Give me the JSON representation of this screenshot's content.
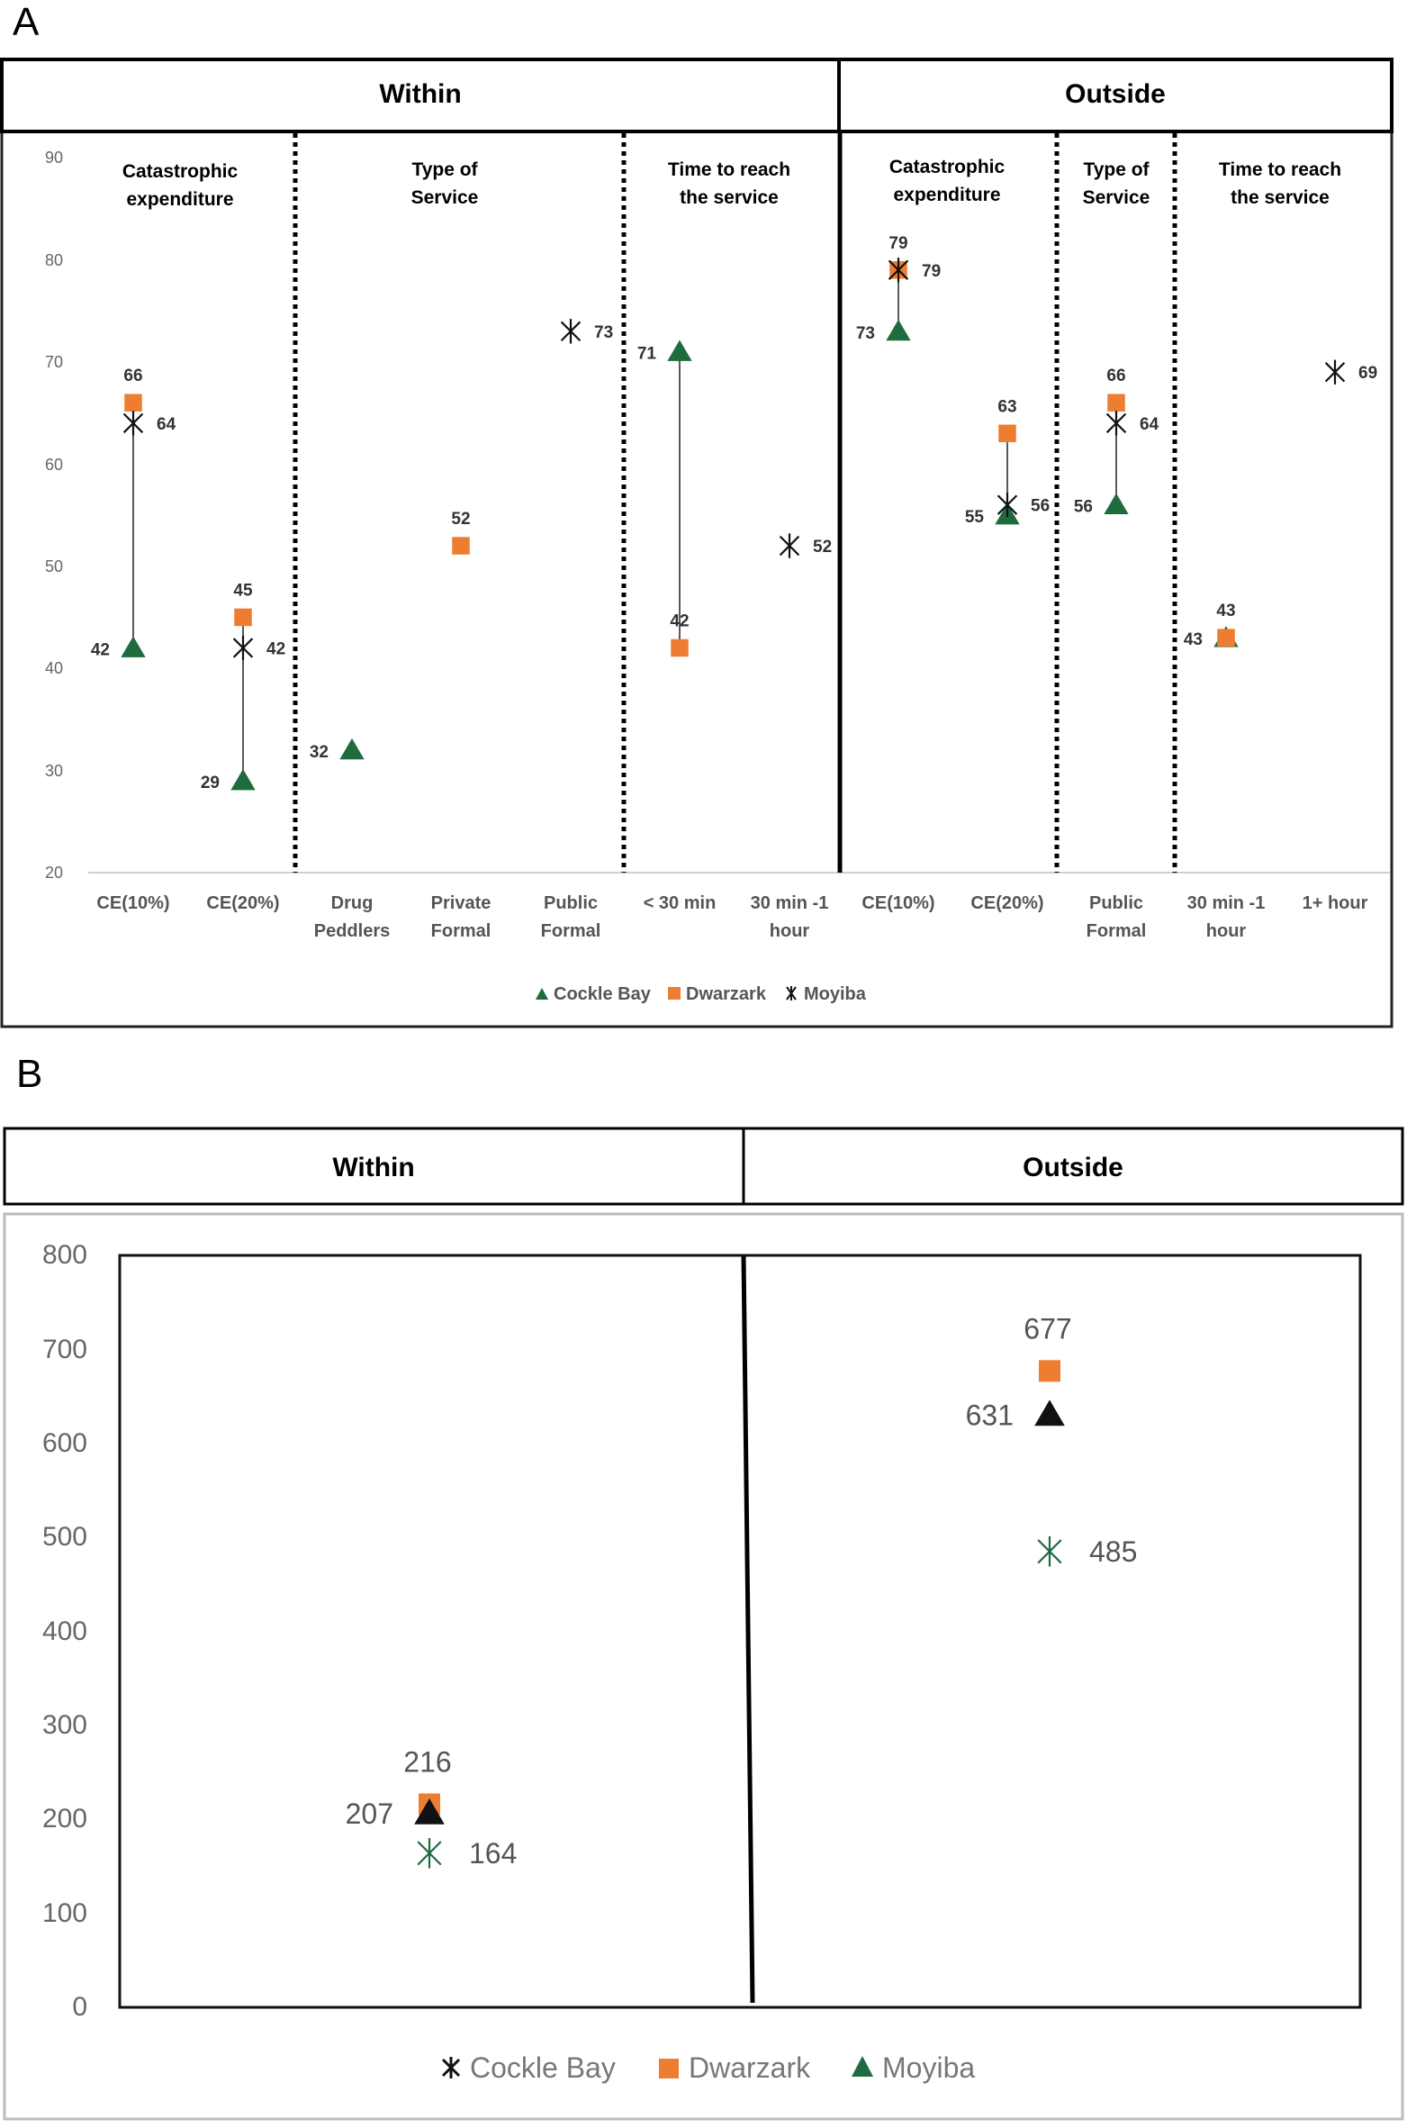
{
  "panels": {
    "a_letter": "A",
    "b_letter": "B"
  },
  "colors": {
    "cockle_bay": "#1e6b3e",
    "dwarzark": "#ed7d31",
    "moyiba": "#111111"
  },
  "chart_data": [
    {
      "type": "scatter",
      "panel": "A",
      "headers": {
        "within": "Within",
        "outside": "Outside"
      },
      "ylim": [
        20,
        90
      ],
      "yticks": [
        "90",
        "80",
        "70",
        "60",
        "50",
        "40",
        "30",
        "20"
      ],
      "section_titles": [
        {
          "line1": "Catastrophic",
          "line2": "expenditure"
        },
        {
          "line1": "Type of",
          "line2": "Service"
        },
        {
          "line1": "Time to reach",
          "line2": "the service"
        },
        {
          "line1": "Catastrophic",
          "line2": "expenditure"
        },
        {
          "line1": "Type of",
          "line2": "Service"
        },
        {
          "line1": "Time to reach",
          "line2": "the service"
        }
      ],
      "categories": [
        {
          "line1": "CE(10%)",
          "line2": ""
        },
        {
          "line1": "CE(20%)",
          "line2": ""
        },
        {
          "line1": "Drug",
          "line2": "Peddlers"
        },
        {
          "line1": "Private",
          "line2": "Formal"
        },
        {
          "line1": "Public",
          "line2": "Formal"
        },
        {
          "line1": "< 30 min",
          "line2": ""
        },
        {
          "line1": "30 min -1",
          "line2": "hour"
        },
        {
          "line1": "CE(10%)",
          "line2": ""
        },
        {
          "line1": "CE(20%)",
          "line2": ""
        },
        {
          "line1": "Public",
          "line2": "Formal"
        },
        {
          "line1": "30 min -1",
          "line2": "hour"
        },
        {
          "line1": "1+ hour",
          "line2": ""
        }
      ],
      "series": [
        {
          "name": "Cockle Bay",
          "marker": "triangle",
          "values": [
            42,
            29,
            32,
            null,
            null,
            71,
            null,
            73,
            55,
            56,
            43,
            null
          ],
          "labels": [
            "42",
            "29",
            "32",
            "",
            "",
            "71",
            "",
            "73",
            "55",
            "56",
            "43",
            ""
          ]
        },
        {
          "name": "Dwarzark",
          "marker": "square",
          "values": [
            66,
            45,
            null,
            52,
            null,
            42,
            null,
            79,
            63,
            66,
            43,
            null
          ],
          "labels": [
            "66",
            "45",
            "",
            "52",
            "",
            "42",
            "",
            "79",
            "63",
            "66",
            "43",
            ""
          ]
        },
        {
          "name": "Moyiba",
          "marker": "star",
          "values": [
            64,
            42,
            null,
            null,
            73,
            null,
            52,
            79,
            56,
            64,
            null,
            69
          ],
          "labels": [
            "64",
            "42",
            "",
            "",
            "73",
            "",
            "52",
            "79",
            "56",
            "64",
            "",
            "69"
          ]
        }
      ],
      "legend": [
        "Cockle Bay",
        "Dwarzark",
        "Moyiba"
      ]
    },
    {
      "type": "scatter",
      "panel": "B",
      "headers": {
        "within": "Within",
        "outside": "Outside"
      },
      "ylim": [
        0,
        800
      ],
      "yticks": [
        "800",
        "700",
        "600",
        "500",
        "400",
        "300",
        "200",
        "100",
        "0"
      ],
      "categories": [
        "Within",
        "Outside"
      ],
      "series": [
        {
          "name": "Cockle Bay",
          "marker": "star",
          "values": [
            164,
            485
          ],
          "labels": [
            "164",
            "485"
          ]
        },
        {
          "name": "Dwarzark",
          "marker": "square",
          "values": [
            216,
            677
          ],
          "labels": [
            "216",
            "677"
          ]
        },
        {
          "name": "Moyiba",
          "marker": "triangle",
          "values": [
            207,
            631
          ],
          "labels": [
            "207",
            "631"
          ]
        }
      ],
      "legend": [
        "Cockle Bay",
        "Dwarzark",
        "Moyiba"
      ]
    }
  ]
}
